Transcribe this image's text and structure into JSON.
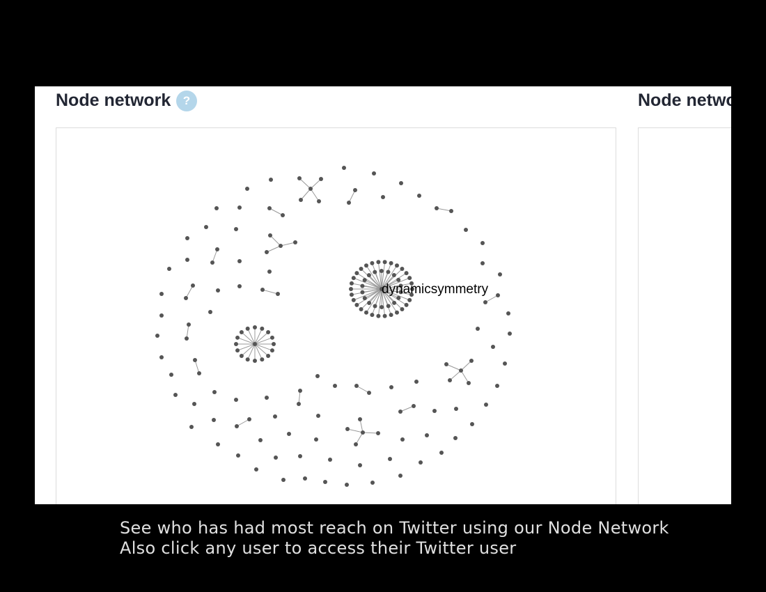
{
  "panels": [
    {
      "title": "Node network"
    },
    {
      "title": "Node network"
    }
  ],
  "help_icon": {
    "glyph": "?",
    "color": "#b4d6ea"
  },
  "network": {
    "featured_user": "dynamicsymmetry",
    "node_color": "#555555",
    "edge_color": "#999999"
  },
  "caption": {
    "line1": "See who has had most reach on Twitter using our Node Network",
    "line2": "Also click any user to access their Twitter user"
  }
}
